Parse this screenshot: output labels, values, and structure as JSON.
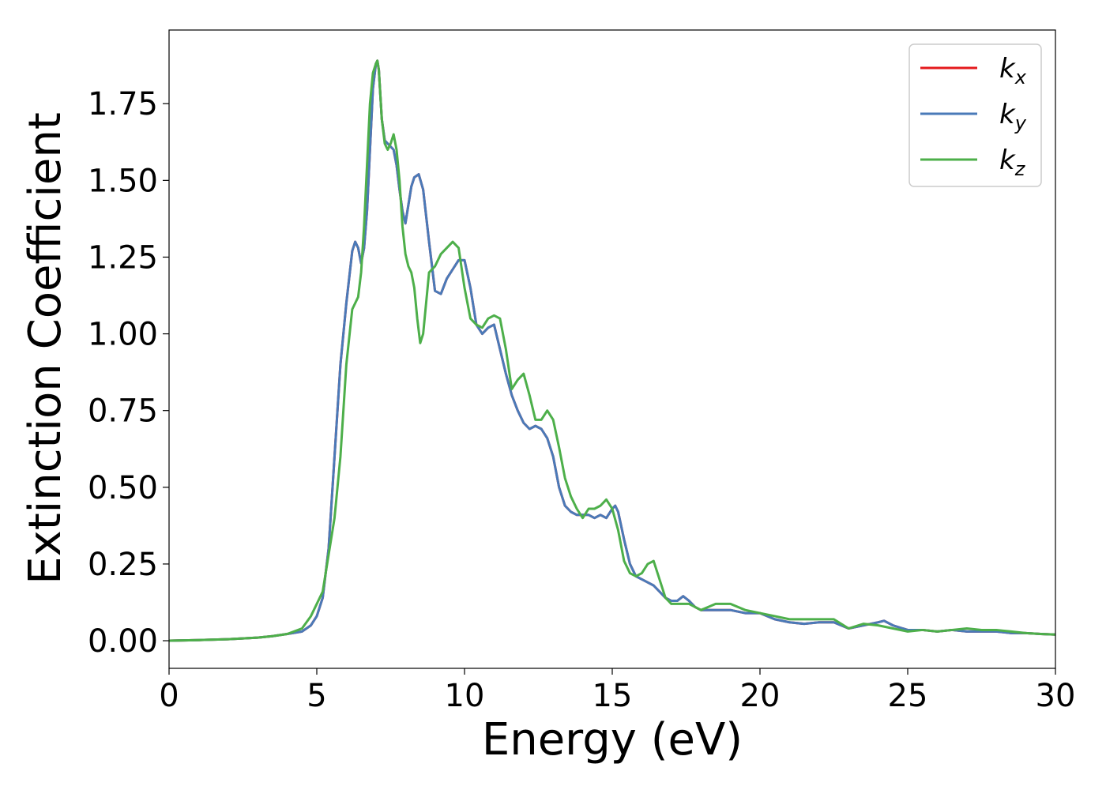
{
  "chart_data": {
    "type": "line",
    "title": "",
    "xlabel": "Energy (eV)",
    "ylabel": "Extinction Coefficient",
    "xlim": [
      0,
      30
    ],
    "ylim": [
      -0.09,
      1.99
    ],
    "xticks": [
      0,
      5,
      10,
      15,
      20,
      25,
      30
    ],
    "xtick_labels": [
      "0",
      "5",
      "10",
      "15",
      "20",
      "25",
      "30"
    ],
    "yticks": [
      0,
      0.25,
      0.5,
      0.75,
      1.0,
      1.25,
      1.5,
      1.75
    ],
    "ytick_labels": [
      "0.00",
      "0.25",
      "0.50",
      "0.75",
      "1.00",
      "1.25",
      "1.50",
      "1.75"
    ],
    "grid": false,
    "legend_position": "top-right",
    "series": [
      {
        "name": "k",
        "subscript": "x",
        "color": "#e41a1c",
        "x": [
          0,
          1,
          2,
          3,
          3.5,
          4.0,
          4.5,
          4.8,
          5.0,
          5.2,
          5.4,
          5.6,
          5.8,
          6.0,
          6.2,
          6.3,
          6.4,
          6.5,
          6.6,
          6.7,
          6.8,
          6.9,
          7.0,
          7.05,
          7.1,
          7.2,
          7.3,
          7.4,
          7.5,
          7.6,
          7.7,
          7.8,
          7.9,
          8.0,
          8.1,
          8.2,
          8.3,
          8.45,
          8.6,
          8.8,
          9.0,
          9.2,
          9.4,
          9.6,
          9.8,
          10.0,
          10.2,
          10.4,
          10.6,
          10.8,
          11.0,
          11.2,
          11.4,
          11.6,
          11.8,
          12.0,
          12.2,
          12.4,
          12.6,
          12.8,
          13.0,
          13.2,
          13.4,
          13.6,
          13.8,
          14.0,
          14.2,
          14.4,
          14.6,
          14.8,
          15.0,
          15.1,
          15.2,
          15.4,
          15.6,
          15.8,
          16.0,
          16.2,
          16.4,
          16.6,
          16.8,
          17.0,
          17.2,
          17.4,
          17.6,
          17.8,
          18.0,
          18.5,
          19.0,
          19.5,
          20.0,
          20.5,
          21.0,
          21.5,
          22.0,
          22.5,
          23.0,
          23.5,
          24.0,
          24.2,
          24.5,
          25.0,
          25.5,
          26.0,
          26.5,
          27.0,
          27.5,
          28.0,
          28.5,
          29.0,
          29.5,
          30.0
        ],
        "y": [
          0.0,
          0.002,
          0.005,
          0.01,
          0.015,
          0.022,
          0.03,
          0.05,
          0.08,
          0.14,
          0.3,
          0.6,
          0.9,
          1.1,
          1.27,
          1.3,
          1.28,
          1.23,
          1.28,
          1.4,
          1.6,
          1.8,
          1.88,
          1.89,
          1.86,
          1.7,
          1.63,
          1.62,
          1.61,
          1.6,
          1.55,
          1.47,
          1.4,
          1.36,
          1.42,
          1.48,
          1.51,
          1.52,
          1.47,
          1.3,
          1.14,
          1.13,
          1.18,
          1.21,
          1.24,
          1.24,
          1.15,
          1.03,
          1.0,
          1.02,
          1.03,
          0.95,
          0.87,
          0.8,
          0.75,
          0.71,
          0.69,
          0.7,
          0.69,
          0.66,
          0.6,
          0.5,
          0.44,
          0.42,
          0.41,
          0.41,
          0.41,
          0.4,
          0.41,
          0.4,
          0.43,
          0.44,
          0.42,
          0.33,
          0.25,
          0.21,
          0.2,
          0.19,
          0.18,
          0.16,
          0.14,
          0.13,
          0.13,
          0.145,
          0.13,
          0.11,
          0.1,
          0.1,
          0.1,
          0.09,
          0.09,
          0.07,
          0.06,
          0.055,
          0.06,
          0.06,
          0.04,
          0.05,
          0.06,
          0.065,
          0.05,
          0.035,
          0.035,
          0.03,
          0.035,
          0.03,
          0.03,
          0.03,
          0.025,
          0.025,
          0.022,
          0.02
        ]
      },
      {
        "name": "k",
        "subscript": "y",
        "color": "#4a7ab8",
        "x": [
          0,
          1,
          2,
          3,
          3.5,
          4.0,
          4.5,
          4.8,
          5.0,
          5.2,
          5.4,
          5.6,
          5.8,
          6.0,
          6.2,
          6.3,
          6.4,
          6.5,
          6.6,
          6.7,
          6.8,
          6.9,
          7.0,
          7.05,
          7.1,
          7.2,
          7.3,
          7.4,
          7.5,
          7.6,
          7.7,
          7.8,
          7.9,
          8.0,
          8.1,
          8.2,
          8.3,
          8.45,
          8.6,
          8.8,
          9.0,
          9.2,
          9.4,
          9.6,
          9.8,
          10.0,
          10.2,
          10.4,
          10.6,
          10.8,
          11.0,
          11.2,
          11.4,
          11.6,
          11.8,
          12.0,
          12.2,
          12.4,
          12.6,
          12.8,
          13.0,
          13.2,
          13.4,
          13.6,
          13.8,
          14.0,
          14.2,
          14.4,
          14.6,
          14.8,
          15.0,
          15.1,
          15.2,
          15.4,
          15.6,
          15.8,
          16.0,
          16.2,
          16.4,
          16.6,
          16.8,
          17.0,
          17.2,
          17.4,
          17.6,
          17.8,
          18.0,
          18.5,
          19.0,
          19.5,
          20.0,
          20.5,
          21.0,
          21.5,
          22.0,
          22.5,
          23.0,
          23.5,
          24.0,
          24.2,
          24.5,
          25.0,
          25.5,
          26.0,
          26.5,
          27.0,
          27.5,
          28.0,
          28.5,
          29.0,
          29.5,
          30.0
        ],
        "y": [
          0.0,
          0.002,
          0.005,
          0.01,
          0.015,
          0.022,
          0.03,
          0.05,
          0.08,
          0.14,
          0.3,
          0.6,
          0.9,
          1.1,
          1.27,
          1.3,
          1.28,
          1.23,
          1.28,
          1.4,
          1.6,
          1.8,
          1.88,
          1.89,
          1.86,
          1.7,
          1.63,
          1.62,
          1.61,
          1.6,
          1.55,
          1.47,
          1.4,
          1.36,
          1.42,
          1.48,
          1.51,
          1.52,
          1.47,
          1.3,
          1.14,
          1.13,
          1.18,
          1.21,
          1.24,
          1.24,
          1.15,
          1.03,
          1.0,
          1.02,
          1.03,
          0.95,
          0.87,
          0.8,
          0.75,
          0.71,
          0.69,
          0.7,
          0.69,
          0.66,
          0.6,
          0.5,
          0.44,
          0.42,
          0.41,
          0.41,
          0.41,
          0.4,
          0.41,
          0.4,
          0.43,
          0.44,
          0.42,
          0.33,
          0.25,
          0.21,
          0.2,
          0.19,
          0.18,
          0.16,
          0.14,
          0.13,
          0.13,
          0.145,
          0.13,
          0.11,
          0.1,
          0.1,
          0.1,
          0.09,
          0.09,
          0.07,
          0.06,
          0.055,
          0.06,
          0.06,
          0.04,
          0.05,
          0.06,
          0.065,
          0.05,
          0.035,
          0.035,
          0.03,
          0.035,
          0.03,
          0.03,
          0.03,
          0.025,
          0.025,
          0.022,
          0.02
        ]
      },
      {
        "name": "k",
        "subscript": "z",
        "color": "#4daf4a",
        "x": [
          0,
          1,
          2,
          3,
          3.5,
          4.0,
          4.5,
          4.8,
          5.0,
          5.2,
          5.4,
          5.6,
          5.8,
          6.0,
          6.2,
          6.4,
          6.5,
          6.6,
          6.7,
          6.8,
          6.9,
          7.0,
          7.05,
          7.1,
          7.2,
          7.3,
          7.4,
          7.5,
          7.6,
          7.7,
          7.8,
          7.9,
          8.0,
          8.1,
          8.2,
          8.3,
          8.4,
          8.5,
          8.6,
          8.7,
          8.8,
          9.0,
          9.2,
          9.4,
          9.6,
          9.8,
          10.0,
          10.2,
          10.4,
          10.6,
          10.8,
          11.0,
          11.2,
          11.4,
          11.6,
          11.8,
          12.0,
          12.2,
          12.4,
          12.6,
          12.8,
          13.0,
          13.2,
          13.4,
          13.6,
          13.8,
          14.0,
          14.2,
          14.4,
          14.6,
          14.8,
          15.0,
          15.2,
          15.4,
          15.6,
          15.8,
          16.0,
          16.2,
          16.4,
          16.6,
          16.8,
          17.0,
          17.2,
          17.4,
          17.6,
          17.8,
          18.0,
          18.5,
          19.0,
          19.5,
          20.0,
          20.5,
          21.0,
          21.5,
          22.0,
          22.5,
          23.0,
          23.5,
          24.0,
          24.5,
          25.0,
          25.5,
          26.0,
          26.5,
          27.0,
          27.5,
          28.0,
          28.5,
          29.0,
          29.5,
          30.0
        ],
        "y": [
          0.0,
          0.002,
          0.005,
          0.01,
          0.015,
          0.022,
          0.04,
          0.08,
          0.12,
          0.16,
          0.28,
          0.4,
          0.6,
          0.9,
          1.08,
          1.12,
          1.2,
          1.35,
          1.55,
          1.75,
          1.85,
          1.88,
          1.89,
          1.86,
          1.7,
          1.62,
          1.6,
          1.62,
          1.65,
          1.6,
          1.5,
          1.35,
          1.26,
          1.22,
          1.2,
          1.15,
          1.05,
          0.97,
          1.0,
          1.1,
          1.2,
          1.22,
          1.26,
          1.28,
          1.3,
          1.28,
          1.15,
          1.05,
          1.03,
          1.02,
          1.05,
          1.06,
          1.05,
          0.95,
          0.82,
          0.85,
          0.87,
          0.8,
          0.72,
          0.72,
          0.75,
          0.72,
          0.63,
          0.53,
          0.47,
          0.43,
          0.4,
          0.43,
          0.43,
          0.44,
          0.46,
          0.43,
          0.36,
          0.26,
          0.22,
          0.21,
          0.22,
          0.25,
          0.26,
          0.2,
          0.14,
          0.12,
          0.12,
          0.12,
          0.12,
          0.11,
          0.1,
          0.12,
          0.12,
          0.1,
          0.09,
          0.08,
          0.07,
          0.07,
          0.07,
          0.07,
          0.04,
          0.055,
          0.05,
          0.04,
          0.03,
          0.035,
          0.03,
          0.035,
          0.04,
          0.035,
          0.035,
          0.03,
          0.025,
          0.022,
          0.02
        ]
      }
    ]
  }
}
